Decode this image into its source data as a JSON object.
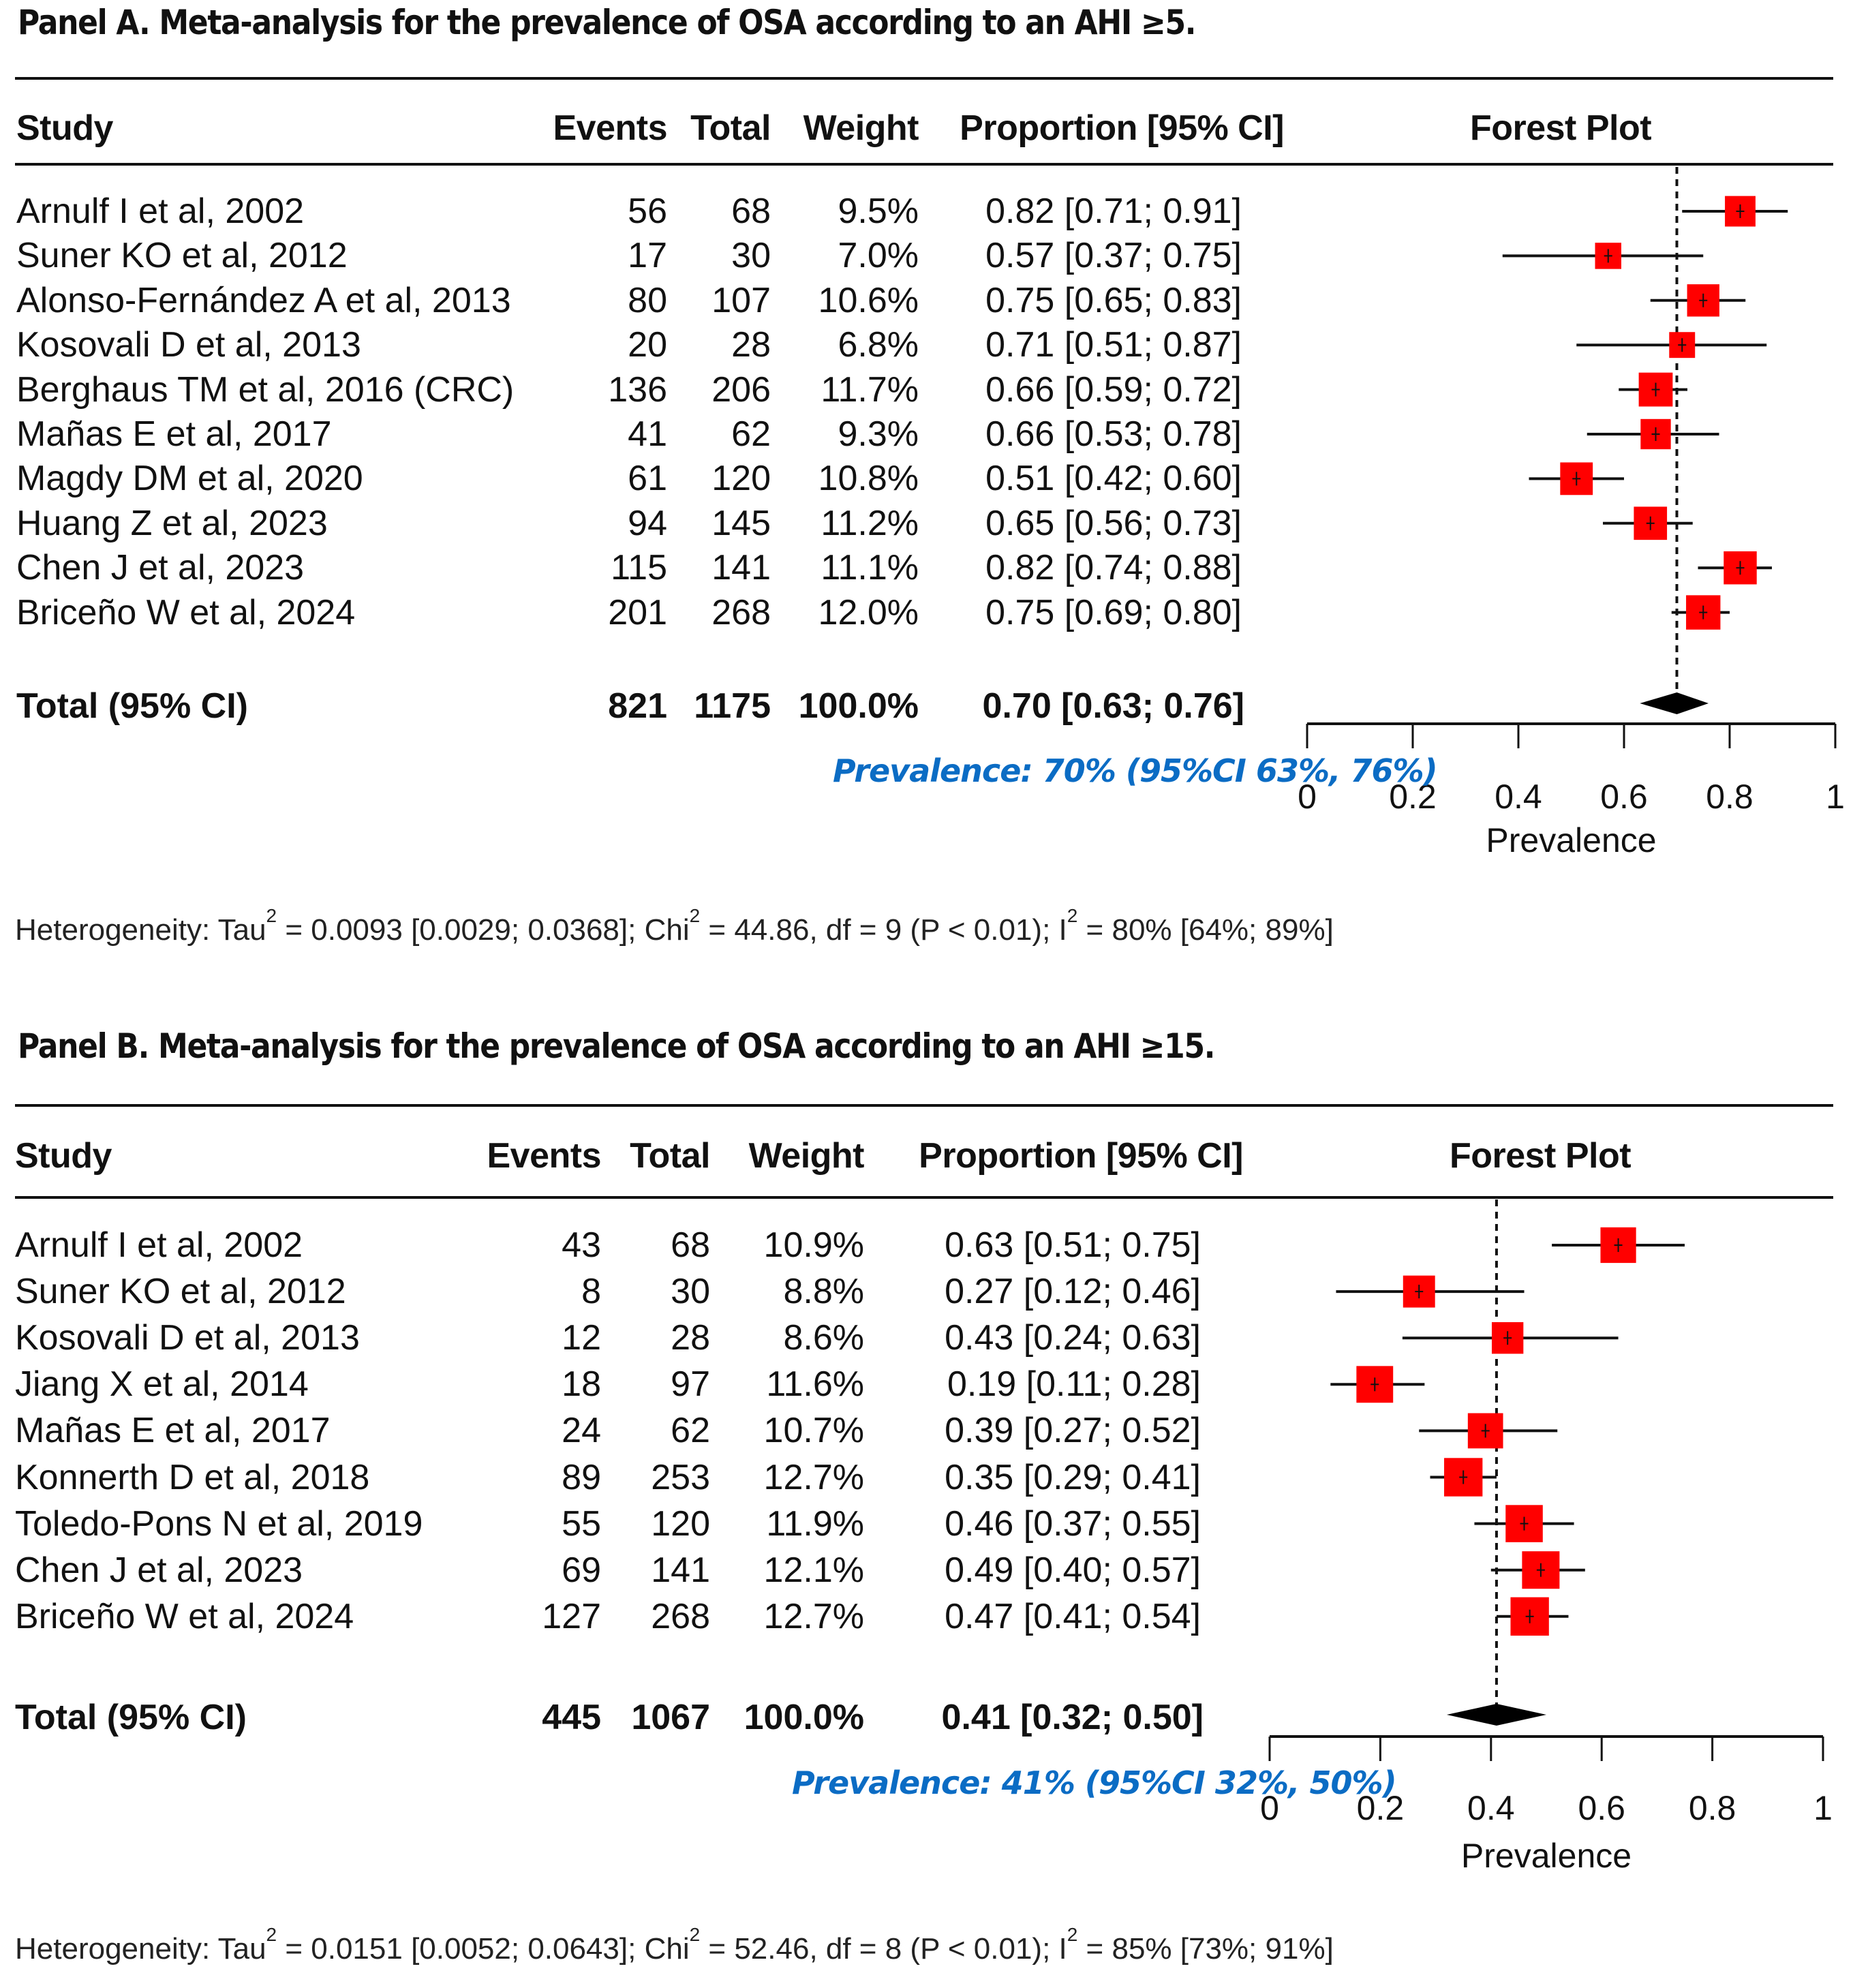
{
  "chart_data": [
    {
      "type": "forest",
      "panel": "A",
      "title": "Panel A. Meta-analysis for the prevalence of OSA according to an AHI ≥5.",
      "columns": [
        "Study",
        "Events",
        "Total",
        "Weight",
        "Proportion [95% CI]",
        "Forest Plot"
      ],
      "studies": [
        {
          "study": "Arnulf I et al, 2002",
          "events": "56",
          "total": "68",
          "weight": "9.5%",
          "ci_text": "0.82 [0.71; 0.91]",
          "est": 0.82,
          "lo": 0.71,
          "hi": 0.91,
          "w": 9.5
        },
        {
          "study": "Suner KO et al, 2012",
          "events": "17",
          "total": "30",
          "weight": "7.0%",
          "ci_text": "0.57 [0.37; 0.75]",
          "est": 0.57,
          "lo": 0.37,
          "hi": 0.75,
          "w": 7.0
        },
        {
          "study": "Alonso-Fernández A et al, 2013",
          "events": "80",
          "total": "107",
          "weight": "10.6%",
          "ci_text": "0.75 [0.65; 0.83]",
          "est": 0.75,
          "lo": 0.65,
          "hi": 0.83,
          "w": 10.6
        },
        {
          "study": "Kosovali D et al, 2013",
          "events": "20",
          "total": "28",
          "weight": "6.8%",
          "ci_text": "0.71 [0.51; 0.87]",
          "est": 0.71,
          "lo": 0.51,
          "hi": 0.87,
          "w": 6.8
        },
        {
          "study": "Berghaus TM et al, 2016 (CRC)",
          "events": "136",
          "total": "206",
          "weight": "11.7%",
          "ci_text": "0.66 [0.59; 0.72]",
          "est": 0.66,
          "lo": 0.59,
          "hi": 0.72,
          "w": 11.7
        },
        {
          "study": "Mañas E et al, 2017",
          "events": "41",
          "total": "62",
          "weight": "9.3%",
          "ci_text": "0.66 [0.53; 0.78]",
          "est": 0.66,
          "lo": 0.53,
          "hi": 0.78,
          "w": 9.3
        },
        {
          "study": "Magdy DM et al, 2020",
          "events": "61",
          "total": "120",
          "weight": "10.8%",
          "ci_text": "0.51 [0.42; 0.60]",
          "est": 0.51,
          "lo": 0.42,
          "hi": 0.6,
          "w": 10.8
        },
        {
          "study": "Huang Z et al, 2023",
          "events": "94",
          "total": "145",
          "weight": "11.2%",
          "ci_text": "0.65 [0.56; 0.73]",
          "est": 0.65,
          "lo": 0.56,
          "hi": 0.73,
          "w": 11.2
        },
        {
          "study": "Chen J et al, 2023",
          "events": "115",
          "total": "141",
          "weight": "11.1%",
          "ci_text": "0.82 [0.74; 0.88]",
          "est": 0.82,
          "lo": 0.74,
          "hi": 0.88,
          "w": 11.1
        },
        {
          "study": "Briceño W et al, 2024",
          "events": "201",
          "total": "268",
          "weight": "12.0%",
          "ci_text": "0.75 [0.69; 0.80]",
          "est": 0.75,
          "lo": 0.69,
          "hi": 0.8,
          "w": 12.0
        }
      ],
      "total": {
        "label": "Total (95% CI)",
        "events": "821",
        "total": "1175",
        "weight": "100.0%",
        "ci_text": "0.70 [0.63; 0.76]",
        "est": 0.7,
        "lo": 0.63,
        "hi": 0.76
      },
      "summary_note": "Prevalence: 70% (95%CI 63%, 76%)",
      "xlabel": "Prevalence",
      "xlim": [
        0,
        1
      ],
      "xticks": [
        "0",
        "0.2",
        "0.4",
        "0.6",
        "0.8",
        "1"
      ],
      "heterogeneity": {
        "prefix": "Heterogeneity: Tau",
        "tau_part": " = 0.0093 [0.0029; 0.0368]; Chi",
        "chi_part": " = 44.86, df = 9 (P < 0.01); I",
        "i_part": " = 80% [64%; 89%]",
        "sup": "2"
      },
      "marker_color": "#ff0000"
    },
    {
      "type": "forest",
      "panel": "B",
      "title": "Panel B. Meta-analysis for the prevalence of OSA according to an AHI ≥15.",
      "columns": [
        "Study",
        "Events",
        "Total",
        "Weight",
        "Proportion [95% CI]",
        "Forest Plot"
      ],
      "studies": [
        {
          "study": "Arnulf I et al, 2002",
          "events": "43",
          "total": "68",
          "weight": "10.9%",
          "ci_text": "0.63 [0.51; 0.75]",
          "est": 0.63,
          "lo": 0.51,
          "hi": 0.75,
          "w": 10.9
        },
        {
          "study": "Suner KO et al, 2012",
          "events": "8",
          "total": "30",
          "weight": "8.8%",
          "ci_text": "0.27 [0.12; 0.46]",
          "est": 0.27,
          "lo": 0.12,
          "hi": 0.46,
          "w": 8.8
        },
        {
          "study": "Kosovali D et al, 2013",
          "events": "12",
          "total": "28",
          "weight": "8.6%",
          "ci_text": "0.43 [0.24; 0.63]",
          "est": 0.43,
          "lo": 0.24,
          "hi": 0.63,
          "w": 8.6
        },
        {
          "study": "Jiang X et al, 2014",
          "events": "18",
          "total": "97",
          "weight": "11.6%",
          "ci_text": "0.19 [0.11; 0.28]",
          "est": 0.19,
          "lo": 0.11,
          "hi": 0.28,
          "w": 11.6
        },
        {
          "study": "Mañas E et al, 2017",
          "events": "24",
          "total": "62",
          "weight": "10.7%",
          "ci_text": "0.39 [0.27; 0.52]",
          "est": 0.39,
          "lo": 0.27,
          "hi": 0.52,
          "w": 10.7
        },
        {
          "study": "Konnerth D et al, 2018",
          "events": "89",
          "total": "253",
          "weight": "12.7%",
          "ci_text": "0.35 [0.29; 0.41]",
          "est": 0.35,
          "lo": 0.29,
          "hi": 0.41,
          "w": 12.7
        },
        {
          "study": "Toledo-Pons N et al, 2019",
          "events": "55",
          "total": "120",
          "weight": "11.9%",
          "ci_text": "0.46 [0.37; 0.55]",
          "est": 0.46,
          "lo": 0.37,
          "hi": 0.55,
          "w": 11.9
        },
        {
          "study": "Chen J et al, 2023",
          "events": "69",
          "total": "141",
          "weight": "12.1%",
          "ci_text": "0.49 [0.40; 0.57]",
          "est": 0.49,
          "lo": 0.4,
          "hi": 0.57,
          "w": 12.1
        },
        {
          "study": "Briceño W et al, 2024",
          "events": "127",
          "total": "268",
          "weight": "12.7%",
          "ci_text": "0.47 [0.41; 0.54]",
          "est": 0.47,
          "lo": 0.41,
          "hi": 0.54,
          "w": 12.7
        }
      ],
      "total": {
        "label": "Total (95% CI)",
        "events": "445",
        "total": "1067",
        "weight": "100.0%",
        "ci_text": "0.41 [0.32; 0.50]",
        "est": 0.41,
        "lo": 0.32,
        "hi": 0.5
      },
      "summary_note": "Prevalence: 41% (95%CI 32%, 50%)",
      "xlabel": "Prevalence",
      "xlim": [
        0,
        1
      ],
      "xticks": [
        "0",
        "0.2",
        "0.4",
        "0.6",
        "0.8",
        "1"
      ],
      "heterogeneity": {
        "prefix": "Heterogeneity: Tau",
        "tau_part": " = 0.0151 [0.0052; 0.0643]; Chi",
        "chi_part": " = 52.46, df = 8 (P < 0.01); I",
        "i_part": " = 85% [73%; 91%]",
        "sup": "2"
      },
      "marker_color": "#ff0000"
    }
  ]
}
